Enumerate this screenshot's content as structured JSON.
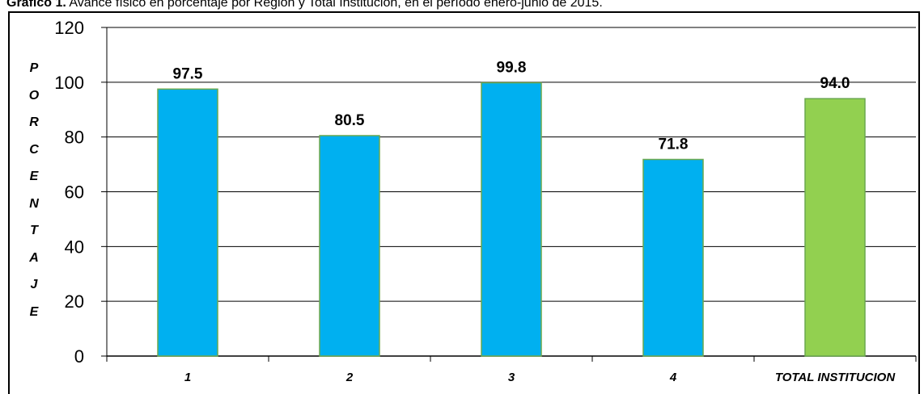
{
  "caption": {
    "label": "Grafico 1.",
    "text": "Avance físico en porcentaje por Región y Total Institución, en el período enero-junio de 2015."
  },
  "chart_data": {
    "type": "bar",
    "title": "",
    "xlabel": "",
    "ylabel": "PORCENTAJE",
    "ylim": [
      0,
      120
    ],
    "yticks": [
      0,
      20,
      40,
      60,
      80,
      100,
      120
    ],
    "grid": true,
    "categories": [
      "1",
      "2",
      "3",
      "4",
      "TOTAL INSTITUCION"
    ],
    "values": [
      97.5,
      80.5,
      99.8,
      71.8,
      94.0
    ],
    "data_labels": [
      "97.5",
      "80.5",
      "99.8",
      "71.8",
      "94.0"
    ],
    "colors": [
      "#00b0f0",
      "#00b0f0",
      "#00b0f0",
      "#00b0f0",
      "#92d050"
    ],
    "edge_color": "#6aa84f"
  }
}
